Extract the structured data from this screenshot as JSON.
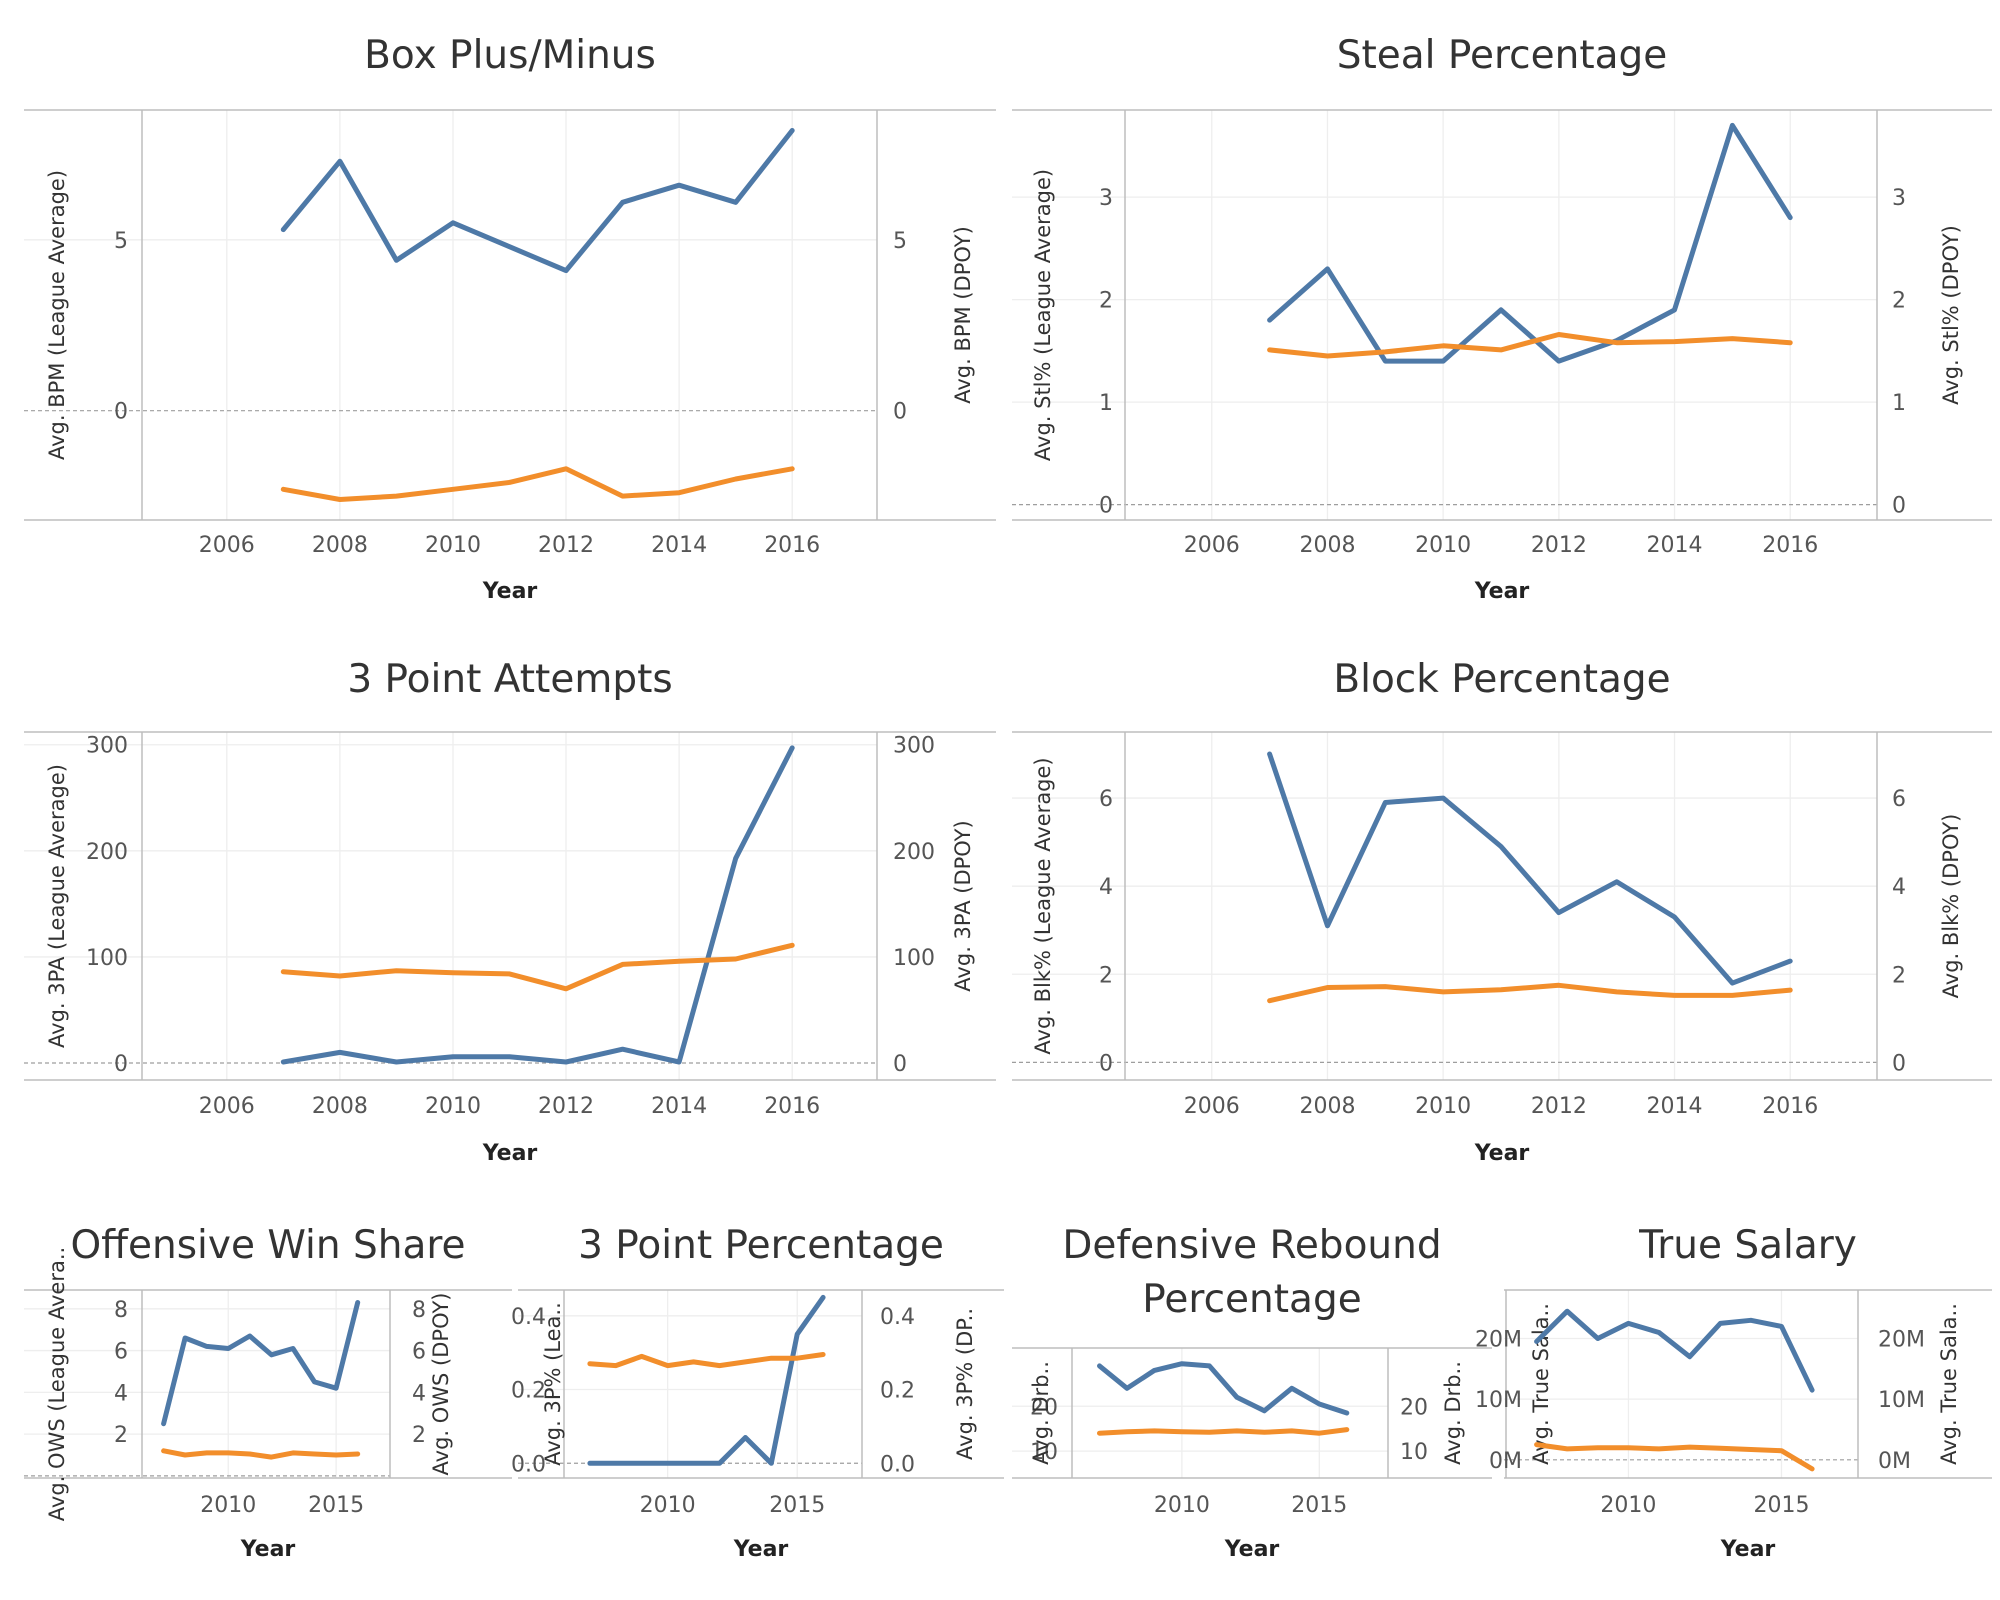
{
  "colors": {
    "dpoy": "#4e79a7",
    "league": "#f28e2b"
  },
  "chart_data": [
    {
      "type": "line",
      "title": "Box Plus/Minus",
      "xlabel": "Year",
      "ylabel_left": "Avg. BPM (League Average)",
      "ylabel_right": "Avg. BPM (DPOY)",
      "xlim": [
        2004.5,
        2017.5
      ],
      "ylim": [
        -3.2,
        8.8
      ],
      "x_ticks": [
        2006,
        2008,
        2010,
        2012,
        2014,
        2016
      ],
      "y_ticks": [
        0,
        5
      ],
      "x": [
        2007,
        2008,
        2009,
        2010,
        2011,
        2012,
        2013,
        2014,
        2015,
        2016
      ],
      "series": [
        {
          "key": "dpoy",
          "values": [
            5.3,
            7.3,
            4.4,
            5.5,
            4.8,
            4.1,
            6.1,
            6.6,
            6.1,
            8.2
          ]
        },
        {
          "key": "league",
          "values": [
            -2.3,
            -2.6,
            -2.5,
            -2.3,
            -2.1,
            -1.7,
            -2.5,
            -2.4,
            -2.0,
            -1.7
          ]
        }
      ]
    },
    {
      "type": "line",
      "title": "Steal Percentage",
      "xlabel": "Year",
      "ylabel_left": "Avg. Stl% (League Average)",
      "ylabel_right": "Avg. Stl% (DPOY)",
      "xlim": [
        2004.5,
        2017.5
      ],
      "ylim": [
        -0.15,
        3.85
      ],
      "x_ticks": [
        2006,
        2008,
        2010,
        2012,
        2014,
        2016
      ],
      "y_ticks": [
        0,
        1,
        2,
        3
      ],
      "x": [
        2007,
        2008,
        2009,
        2010,
        2011,
        2012,
        2013,
        2014,
        2015,
        2016
      ],
      "series": [
        {
          "key": "dpoy",
          "values": [
            1.8,
            2.3,
            1.4,
            1.4,
            1.9,
            1.4,
            1.6,
            1.9,
            3.7,
            2.8
          ]
        },
        {
          "key": "league",
          "values": [
            1.51,
            1.45,
            1.49,
            1.55,
            1.51,
            1.66,
            1.58,
            1.59,
            1.62,
            1.58
          ]
        }
      ]
    },
    {
      "type": "line",
      "title": "3 Point Attempts",
      "xlabel": "Year",
      "ylabel_left": "Avg. 3PA (League Average)",
      "ylabel_right": "Avg. 3PA (DPOY)",
      "xlim": [
        2004.5,
        2017.5
      ],
      "ylim": [
        -16,
        312
      ],
      "x_ticks": [
        2006,
        2008,
        2010,
        2012,
        2014,
        2016
      ],
      "y_ticks": [
        0,
        100,
        200,
        300
      ],
      "x": [
        2007,
        2008,
        2009,
        2010,
        2011,
        2012,
        2013,
        2014,
        2015,
        2016
      ],
      "series": [
        {
          "key": "dpoy",
          "values": [
            1,
            10,
            1,
            6,
            6,
            1,
            13,
            1,
            193,
            297
          ]
        },
        {
          "key": "league",
          "values": [
            86,
            82,
            87,
            85,
            84,
            70,
            93,
            96,
            98,
            111
          ]
        }
      ]
    },
    {
      "type": "line",
      "title": "Block Percentage",
      "xlabel": "Year",
      "ylabel_left": "Avg. Blk% (League Average)",
      "ylabel_right": "Avg. Blk% (DPOY)",
      "xlim": [
        2004.5,
        2017.5
      ],
      "ylim": [
        -0.4,
        7.5
      ],
      "x_ticks": [
        2006,
        2008,
        2010,
        2012,
        2014,
        2016
      ],
      "y_ticks": [
        0,
        2,
        4,
        6
      ],
      "x": [
        2007,
        2008,
        2009,
        2010,
        2011,
        2012,
        2013,
        2014,
        2015,
        2016
      ],
      "series": [
        {
          "key": "dpoy",
          "values": [
            7.0,
            3.1,
            5.9,
            6.0,
            4.9,
            3.4,
            4.1,
            3.3,
            1.8,
            2.3
          ]
        },
        {
          "key": "league",
          "values": [
            1.4,
            1.7,
            1.72,
            1.6,
            1.65,
            1.75,
            1.6,
            1.52,
            1.52,
            1.64
          ]
        }
      ]
    },
    {
      "type": "line",
      "title": "Offensive Win Share",
      "xlabel": "Year",
      "ylabel_left": "Avg. OWS (League Avera..",
      "ylabel_right": "Avg. OWS (DPOY)",
      "xlim": [
        2006,
        2017.5
      ],
      "ylim": [
        -0.1,
        8.9
      ],
      "x_ticks": [
        2010,
        2015
      ],
      "y_ticks": [
        2,
        4,
        6,
        8
      ],
      "x": [
        2007,
        2008,
        2009,
        2010,
        2011,
        2012,
        2013,
        2014,
        2015,
        2016
      ],
      "series": [
        {
          "key": "dpoy",
          "values": [
            2.5,
            6.6,
            6.2,
            6.1,
            6.7,
            5.8,
            6.1,
            4.5,
            4.2,
            8.3
          ]
        },
        {
          "key": "league",
          "values": [
            1.2,
            1.0,
            1.1,
            1.1,
            1.05,
            0.9,
            1.1,
            1.05,
            1.0,
            1.05
          ]
        }
      ]
    },
    {
      "type": "line",
      "title": "3 Point Percentage",
      "xlabel": "Year",
      "ylabel_left": "Avg. 3P% (Lea..",
      "ylabel_right": "Avg. 3P% (DP..",
      "xlim": [
        2006,
        2017.5
      ],
      "ylim": [
        -0.04,
        0.47
      ],
      "x_ticks": [
        2010,
        2015
      ],
      "y_ticks": [
        0.0,
        0.2,
        0.4
      ],
      "x": [
        2007,
        2008,
        2009,
        2010,
        2011,
        2012,
        2013,
        2014,
        2015,
        2016
      ],
      "series": [
        {
          "key": "dpoy",
          "values": [
            0.0,
            0.0,
            0.0,
            0.0,
            0.0,
            0.0,
            0.07,
            0.0,
            0.35,
            0.45
          ]
        },
        {
          "key": "league",
          "values": [
            0.27,
            0.265,
            0.29,
            0.265,
            0.275,
            0.265,
            0.275,
            0.285,
            0.285,
            0.295
          ]
        }
      ]
    },
    {
      "type": "line",
      "title": "Defensive Rebound Percentage",
      "xlabel": "Year",
      "ylabel_left": "Avg. Drb..",
      "ylabel_right": "Avg. Drb..",
      "xlim": [
        2006,
        2017.5
      ],
      "ylim": [
        4,
        33
      ],
      "x_ticks": [
        2010,
        2015
      ],
      "y_ticks": [
        10,
        20
      ],
      "x": [
        2007,
        2008,
        2009,
        2010,
        2011,
        2012,
        2013,
        2014,
        2015,
        2016
      ],
      "series": [
        {
          "key": "dpoy",
          "values": [
            29,
            24,
            28,
            29.5,
            29,
            22,
            19,
            24,
            20.5,
            18.5
          ]
        },
        {
          "key": "league",
          "values": [
            14,
            14.3,
            14.5,
            14.3,
            14.2,
            14.5,
            14.2,
            14.5,
            14,
            14.8
          ]
        }
      ]
    },
    {
      "type": "line",
      "title": "True Salary",
      "xlabel": "Year",
      "ylabel_left": "Avg. True Sala..",
      "ylabel_right": "Avg. True Sala..",
      "ylabel_units": "M",
      "xlim": [
        2006,
        2017.5
      ],
      "ylim": [
        -3,
        28
      ],
      "x_ticks": [
        2010,
        2015
      ],
      "y_ticks": [
        0,
        10,
        20
      ],
      "x": [
        2007,
        2008,
        2009,
        2010,
        2011,
        2012,
        2013,
        2014,
        2015,
        2016
      ],
      "series": [
        {
          "key": "dpoy",
          "values": [
            19.5,
            24.5,
            20,
            22.5,
            21,
            17,
            22.5,
            23,
            22,
            11.5
          ]
        },
        {
          "key": "league",
          "values": [
            2.5,
            1.8,
            2.0,
            2.0,
            1.8,
            2.1,
            1.9,
            1.7,
            1.5,
            -1.5
          ]
        }
      ]
    }
  ]
}
